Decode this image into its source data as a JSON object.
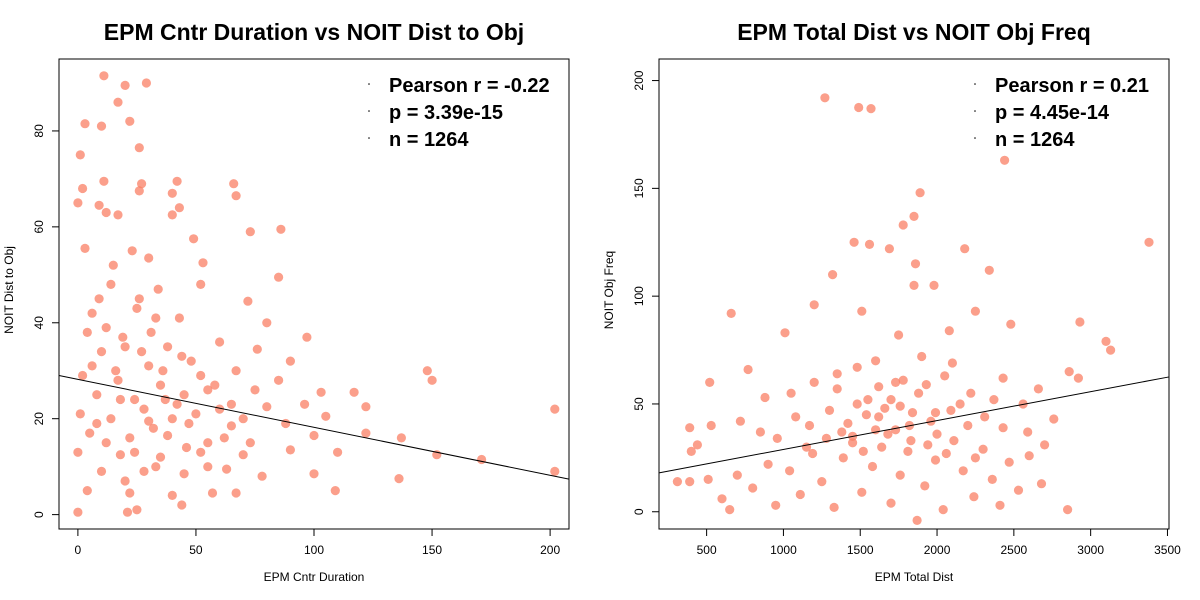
{
  "chart_data": [
    {
      "type": "scatter",
      "title": "EPM Cntr Duration vs NOIT Dist to Obj",
      "xlabel": "EPM Cntr Duration",
      "ylabel": "NOIT Dist to Obj",
      "xlim": [
        -8,
        208
      ],
      "ylim": [
        -3,
        95
      ],
      "xticks": [
        0,
        50,
        100,
        150,
        200
      ],
      "yticks": [
        0,
        20,
        40,
        60,
        80
      ],
      "grid": false,
      "point_color": "#fa7f64",
      "regression": {
        "intercept": 28.2,
        "slope": -0.1
      },
      "stats": [
        "Pearson r = -0.22",
        "p = 3.39e-15",
        "n = 1264"
      ],
      "stats_position": "top-right",
      "points": [
        {
          "x": 11,
          "y": 91.5
        },
        {
          "x": 20,
          "y": 89.5
        },
        {
          "x": 29,
          "y": 90
        },
        {
          "x": 10,
          "y": 81
        },
        {
          "x": 22,
          "y": 82
        },
        {
          "x": 3,
          "y": 81.5
        },
        {
          "x": 17,
          "y": 86
        },
        {
          "x": 26,
          "y": 76.5
        },
        {
          "x": 1,
          "y": 75
        },
        {
          "x": 0,
          "y": 65
        },
        {
          "x": 2,
          "y": 68
        },
        {
          "x": 11,
          "y": 69.5
        },
        {
          "x": 27,
          "y": 69
        },
        {
          "x": 42,
          "y": 69.5
        },
        {
          "x": 66,
          "y": 69
        },
        {
          "x": 26,
          "y": 67.5
        },
        {
          "x": 40,
          "y": 67
        },
        {
          "x": 67,
          "y": 66.5
        },
        {
          "x": 9,
          "y": 64.5
        },
        {
          "x": 43,
          "y": 64
        },
        {
          "x": 12,
          "y": 63
        },
        {
          "x": 40,
          "y": 62.5
        },
        {
          "x": 17,
          "y": 62.5
        },
        {
          "x": 86,
          "y": 59.5
        },
        {
          "x": 3,
          "y": 55.5
        },
        {
          "x": 23,
          "y": 55
        },
        {
          "x": 49,
          "y": 57.5
        },
        {
          "x": 73,
          "y": 59
        },
        {
          "x": 30,
          "y": 53.5
        },
        {
          "x": 53,
          "y": 52.5
        },
        {
          "x": 85,
          "y": 49.5
        },
        {
          "x": 14,
          "y": 48
        },
        {
          "x": 34,
          "y": 47
        },
        {
          "x": 52,
          "y": 48
        },
        {
          "x": 72,
          "y": 44.5
        },
        {
          "x": 6,
          "y": 42
        },
        {
          "x": 25,
          "y": 43
        },
        {
          "x": 43,
          "y": 41
        },
        {
          "x": 80,
          "y": 40
        },
        {
          "x": 97,
          "y": 37
        },
        {
          "x": 4,
          "y": 38
        },
        {
          "x": 19,
          "y": 37
        },
        {
          "x": 38,
          "y": 35
        },
        {
          "x": 60,
          "y": 36
        },
        {
          "x": 76,
          "y": 34.5
        },
        {
          "x": 90,
          "y": 32
        },
        {
          "x": 10,
          "y": 34
        },
        {
          "x": 30,
          "y": 31
        },
        {
          "x": 48,
          "y": 32
        },
        {
          "x": 67,
          "y": 30
        },
        {
          "x": 85,
          "y": 28
        },
        {
          "x": 148,
          "y": 30
        },
        {
          "x": 150,
          "y": 28
        },
        {
          "x": 2,
          "y": 29
        },
        {
          "x": 17,
          "y": 28
        },
        {
          "x": 35,
          "y": 27
        },
        {
          "x": 55,
          "y": 26
        },
        {
          "x": 75,
          "y": 26
        },
        {
          "x": 103,
          "y": 25.5
        },
        {
          "x": 117,
          "y": 25.5
        },
        {
          "x": 8,
          "y": 25
        },
        {
          "x": 24,
          "y": 24
        },
        {
          "x": 42,
          "y": 23
        },
        {
          "x": 60,
          "y": 22
        },
        {
          "x": 80,
          "y": 22.5
        },
        {
          "x": 96,
          "y": 23
        },
        {
          "x": 122,
          "y": 22.5
        },
        {
          "x": 202,
          "y": 22
        },
        {
          "x": 1,
          "y": 21
        },
        {
          "x": 14,
          "y": 20
        },
        {
          "x": 30,
          "y": 19.5
        },
        {
          "x": 47,
          "y": 19
        },
        {
          "x": 65,
          "y": 18.5
        },
        {
          "x": 88,
          "y": 19
        },
        {
          "x": 105,
          "y": 20.5
        },
        {
          "x": 5,
          "y": 17
        },
        {
          "x": 22,
          "y": 16
        },
        {
          "x": 38,
          "y": 16.5
        },
        {
          "x": 55,
          "y": 15
        },
        {
          "x": 73,
          "y": 15
        },
        {
          "x": 100,
          "y": 16.5
        },
        {
          "x": 122,
          "y": 17
        },
        {
          "x": 137,
          "y": 16
        },
        {
          "x": 0,
          "y": 13
        },
        {
          "x": 18,
          "y": 12.5
        },
        {
          "x": 35,
          "y": 12
        },
        {
          "x": 52,
          "y": 13
        },
        {
          "x": 70,
          "y": 12.5
        },
        {
          "x": 90,
          "y": 13.5
        },
        {
          "x": 110,
          "y": 13
        },
        {
          "x": 152,
          "y": 12.5
        },
        {
          "x": 171,
          "y": 11.5
        },
        {
          "x": 10,
          "y": 9
        },
        {
          "x": 28,
          "y": 9
        },
        {
          "x": 45,
          "y": 8.5
        },
        {
          "x": 63,
          "y": 9.5
        },
        {
          "x": 78,
          "y": 8
        },
        {
          "x": 100,
          "y": 8.5
        },
        {
          "x": 136,
          "y": 7.5
        },
        {
          "x": 202,
          "y": 9
        },
        {
          "x": 4,
          "y": 5
        },
        {
          "x": 22,
          "y": 4.5
        },
        {
          "x": 40,
          "y": 4
        },
        {
          "x": 57,
          "y": 4.5
        },
        {
          "x": 67,
          "y": 4.5
        },
        {
          "x": 109,
          "y": 5
        },
        {
          "x": 0,
          "y": 0.5
        },
        {
          "x": 21,
          "y": 0.5
        },
        {
          "x": 25,
          "y": 1
        },
        {
          "x": 44,
          "y": 2
        },
        {
          "x": 6,
          "y": 31
        },
        {
          "x": 12,
          "y": 39
        },
        {
          "x": 26,
          "y": 45
        },
        {
          "x": 33,
          "y": 41
        },
        {
          "x": 15,
          "y": 52
        },
        {
          "x": 20,
          "y": 35
        },
        {
          "x": 36,
          "y": 30
        },
        {
          "x": 45,
          "y": 25
        },
        {
          "x": 28,
          "y": 22
        },
        {
          "x": 18,
          "y": 24
        },
        {
          "x": 32,
          "y": 18
        },
        {
          "x": 40,
          "y": 20
        },
        {
          "x": 50,
          "y": 21
        },
        {
          "x": 58,
          "y": 27
        },
        {
          "x": 12,
          "y": 15
        },
        {
          "x": 24,
          "y": 13
        },
        {
          "x": 46,
          "y": 14
        },
        {
          "x": 62,
          "y": 16
        },
        {
          "x": 8,
          "y": 19
        },
        {
          "x": 16,
          "y": 30
        },
        {
          "x": 27,
          "y": 34
        },
        {
          "x": 37,
          "y": 24
        },
        {
          "x": 52,
          "y": 29
        },
        {
          "x": 65,
          "y": 23
        },
        {
          "x": 70,
          "y": 20
        },
        {
          "x": 33,
          "y": 10
        },
        {
          "x": 20,
          "y": 7
        },
        {
          "x": 55,
          "y": 10
        },
        {
          "x": 44,
          "y": 33
        },
        {
          "x": 9,
          "y": 45
        },
        {
          "x": 31,
          "y": 38
        }
      ]
    },
    {
      "type": "scatter",
      "title": "EPM Total Dist vs NOIT Obj Freq",
      "xlabel": "EPM Total Dist",
      "ylabel": "NOIT Obj Freq",
      "xlim": [
        190,
        3510
      ],
      "ylim": [
        -8,
        210
      ],
      "xticks": [
        500,
        1000,
        1500,
        2000,
        2500,
        3000,
        3500
      ],
      "yticks": [
        0,
        50,
        100,
        150,
        200
      ],
      "grid": false,
      "point_color": "#fa7f64",
      "regression": {
        "intercept": 15.5,
        "slope": 0.0134
      },
      "stats": [
        "Pearson r = 0.21",
        "p = 4.45e-14",
        "n = 1264"
      ],
      "stats_position": "top-right",
      "points": [
        {
          "x": 1270,
          "y": 192
        },
        {
          "x": 1490,
          "y": 187.5
        },
        {
          "x": 1570,
          "y": 187
        },
        {
          "x": 2440,
          "y": 163
        },
        {
          "x": 1890,
          "y": 148
        },
        {
          "x": 1850,
          "y": 137
        },
        {
          "x": 1780,
          "y": 133
        },
        {
          "x": 3380,
          "y": 125
        },
        {
          "x": 1690,
          "y": 122
        },
        {
          "x": 2180,
          "y": 122
        },
        {
          "x": 1560,
          "y": 124
        },
        {
          "x": 1460,
          "y": 125
        },
        {
          "x": 1860,
          "y": 115
        },
        {
          "x": 2340,
          "y": 112
        },
        {
          "x": 1320,
          "y": 110
        },
        {
          "x": 1850,
          "y": 105
        },
        {
          "x": 1980,
          "y": 105
        },
        {
          "x": 1200,
          "y": 96
        },
        {
          "x": 1510,
          "y": 93
        },
        {
          "x": 2250,
          "y": 93
        },
        {
          "x": 660,
          "y": 92
        },
        {
          "x": 2930,
          "y": 88
        },
        {
          "x": 3100,
          "y": 79
        },
        {
          "x": 3130,
          "y": 75
        },
        {
          "x": 1010,
          "y": 83
        },
        {
          "x": 1750,
          "y": 82
        },
        {
          "x": 2080,
          "y": 84
        },
        {
          "x": 2480,
          "y": 87
        },
        {
          "x": 2920,
          "y": 62
        },
        {
          "x": 2860,
          "y": 65
        },
        {
          "x": 2660,
          "y": 57
        },
        {
          "x": 2430,
          "y": 62
        },
        {
          "x": 520,
          "y": 60
        },
        {
          "x": 770,
          "y": 66
        },
        {
          "x": 880,
          "y": 53
        },
        {
          "x": 1050,
          "y": 55
        },
        {
          "x": 1200,
          "y": 60
        },
        {
          "x": 1350,
          "y": 64
        },
        {
          "x": 1480,
          "y": 67
        },
        {
          "x": 1620,
          "y": 58
        },
        {
          "x": 1780,
          "y": 61
        },
        {
          "x": 1930,
          "y": 59
        },
        {
          "x": 2050,
          "y": 63
        },
        {
          "x": 2220,
          "y": 55
        },
        {
          "x": 2370,
          "y": 52
        },
        {
          "x": 2560,
          "y": 50
        },
        {
          "x": 2760,
          "y": 43
        },
        {
          "x": 390,
          "y": 39
        },
        {
          "x": 400,
          "y": 28
        },
        {
          "x": 440,
          "y": 31
        },
        {
          "x": 530,
          "y": 40
        },
        {
          "x": 720,
          "y": 42
        },
        {
          "x": 850,
          "y": 37
        },
        {
          "x": 960,
          "y": 34
        },
        {
          "x": 1080,
          "y": 44
        },
        {
          "x": 1170,
          "y": 40
        },
        {
          "x": 1300,
          "y": 47
        },
        {
          "x": 1420,
          "y": 41
        },
        {
          "x": 1540,
          "y": 45
        },
        {
          "x": 1660,
          "y": 48
        },
        {
          "x": 1730,
          "y": 38
        },
        {
          "x": 1840,
          "y": 46
        },
        {
          "x": 1960,
          "y": 42
        },
        {
          "x": 2090,
          "y": 47
        },
        {
          "x": 2200,
          "y": 40
        },
        {
          "x": 2310,
          "y": 44
        },
        {
          "x": 2430,
          "y": 39
        },
        {
          "x": 2590,
          "y": 37
        },
        {
          "x": 2700,
          "y": 31
        },
        {
          "x": 310,
          "y": 14
        },
        {
          "x": 390,
          "y": 14
        },
        {
          "x": 510,
          "y": 15
        },
        {
          "x": 600,
          "y": 6
        },
        {
          "x": 650,
          "y": 1
        },
        {
          "x": 700,
          "y": 17
        },
        {
          "x": 800,
          "y": 11
        },
        {
          "x": 900,
          "y": 22
        },
        {
          "x": 950,
          "y": 3
        },
        {
          "x": 1040,
          "y": 19
        },
        {
          "x": 1110,
          "y": 8
        },
        {
          "x": 1190,
          "y": 27
        },
        {
          "x": 1250,
          "y": 14
        },
        {
          "x": 1330,
          "y": 2
        },
        {
          "x": 1390,
          "y": 25
        },
        {
          "x": 1450,
          "y": 32
        },
        {
          "x": 1510,
          "y": 9
        },
        {
          "x": 1580,
          "y": 21
        },
        {
          "x": 1640,
          "y": 30
        },
        {
          "x": 1700,
          "y": 4
        },
        {
          "x": 1760,
          "y": 17
        },
        {
          "x": 1810,
          "y": 28
        },
        {
          "x": 1870,
          "y": -4
        },
        {
          "x": 1920,
          "y": 12
        },
        {
          "x": 1990,
          "y": 24
        },
        {
          "x": 2040,
          "y": 1
        },
        {
          "x": 2110,
          "y": 33
        },
        {
          "x": 2170,
          "y": 19
        },
        {
          "x": 2240,
          "y": 7
        },
        {
          "x": 2300,
          "y": 29
        },
        {
          "x": 2360,
          "y": 15
        },
        {
          "x": 2410,
          "y": 3
        },
        {
          "x": 2470,
          "y": 23
        },
        {
          "x": 2530,
          "y": 10
        },
        {
          "x": 2600,
          "y": 26
        },
        {
          "x": 2680,
          "y": 13
        },
        {
          "x": 2850,
          "y": 1
        },
        {
          "x": 1350,
          "y": 57
        },
        {
          "x": 1600,
          "y": 70
        },
        {
          "x": 1900,
          "y": 72
        },
        {
          "x": 2100,
          "y": 69
        },
        {
          "x": 1450,
          "y": 35
        },
        {
          "x": 1700,
          "y": 52
        },
        {
          "x": 1820,
          "y": 40
        },
        {
          "x": 1620,
          "y": 44
        },
        {
          "x": 1760,
          "y": 49
        },
        {
          "x": 1880,
          "y": 55
        },
        {
          "x": 1550,
          "y": 52
        },
        {
          "x": 2000,
          "y": 36
        },
        {
          "x": 1680,
          "y": 36
        },
        {
          "x": 1520,
          "y": 28
        },
        {
          "x": 1940,
          "y": 31
        },
        {
          "x": 1380,
          "y": 37
        },
        {
          "x": 2250,
          "y": 25
        },
        {
          "x": 1150,
          "y": 30
        },
        {
          "x": 1280,
          "y": 34
        },
        {
          "x": 2150,
          "y": 50
        },
        {
          "x": 1730,
          "y": 60
        },
        {
          "x": 1830,
          "y": 33
        },
        {
          "x": 1600,
          "y": 38
        },
        {
          "x": 1990,
          "y": 46
        },
        {
          "x": 1480,
          "y": 50
        },
        {
          "x": 2060,
          "y": 27
        }
      ]
    }
  ]
}
